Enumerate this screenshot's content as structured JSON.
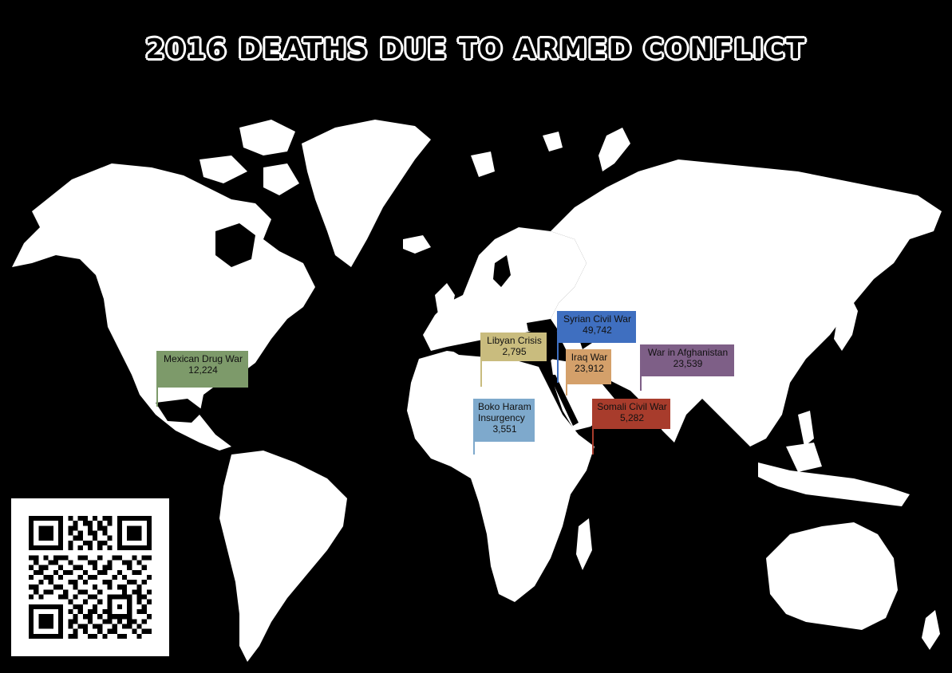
{
  "title": "2016 DEATHS DUE TO ARMED CONFLICT",
  "colors": {
    "background": "#000000",
    "land": "#ffffff",
    "mexican": "#7d9a6a",
    "libyan": "#c9bc7e",
    "syrian": "#3f6fc0",
    "iraq": "#d4a06a",
    "afghanistan": "#7e5f87",
    "boko": "#7ea9cc",
    "somali": "#a83c2c"
  },
  "conflicts": [
    {
      "name": "Mexican Drug War",
      "deaths": "12,224",
      "color": "#7d9a6a"
    },
    {
      "name": "Libyan Crisis",
      "deaths": "2,795",
      "color": "#c9bc7e"
    },
    {
      "name": "Syrian Civil War",
      "deaths": "49,742",
      "color": "#3f6fc0"
    },
    {
      "name": "Iraq War",
      "deaths": "23,912",
      "color": "#d4a06a"
    },
    {
      "name": "War in Afghanistan",
      "deaths": "23,539",
      "color": "#7e5f87"
    },
    {
      "name": "Boko Haram Insurgency",
      "name_lines": [
        "Boko Haram",
        "Insurgency"
      ],
      "deaths": "3,551",
      "color": "#7ea9cc"
    },
    {
      "name": "Somali Civil War",
      "deaths": "5,282",
      "color": "#a83c2c"
    }
  ],
  "qr_code": {
    "icon": "qr-code-icon"
  }
}
